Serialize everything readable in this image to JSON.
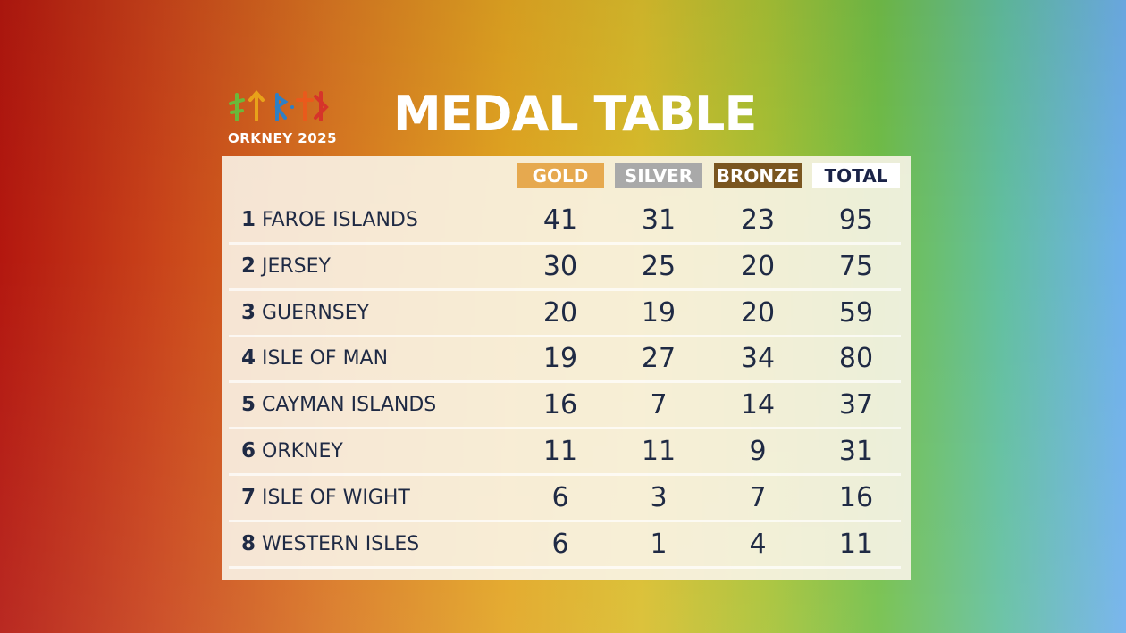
{
  "logo": {
    "text": "ORKNEY 2025"
  },
  "title": "MEDAL TABLE",
  "table": {
    "headers": [
      "GOLD",
      "SILVER",
      "BRONZE",
      "TOTAL"
    ],
    "rows": [
      [
        "1",
        "FAROE ISLANDS",
        "41",
        "31",
        "23",
        "95"
      ],
      [
        "2",
        "JERSEY",
        "30",
        "25",
        "20",
        "75"
      ],
      [
        "3",
        "GUERNSEY",
        "20",
        "19",
        "20",
        "59"
      ],
      [
        "4",
        "ISLE OF MAN",
        "19",
        "27",
        "34",
        "80"
      ],
      [
        "5",
        "CAYMAN ISLANDS",
        "16",
        "7",
        "14",
        "37"
      ],
      [
        "6",
        "ORKNEY",
        "11",
        "11",
        "9",
        "31"
      ],
      [
        "7",
        "ISLE OF WIGHT",
        "6",
        "3",
        "7",
        "16"
      ],
      [
        "8",
        "WESTERN ISLES",
        "6",
        "1",
        "4",
        "11"
      ]
    ]
  }
}
